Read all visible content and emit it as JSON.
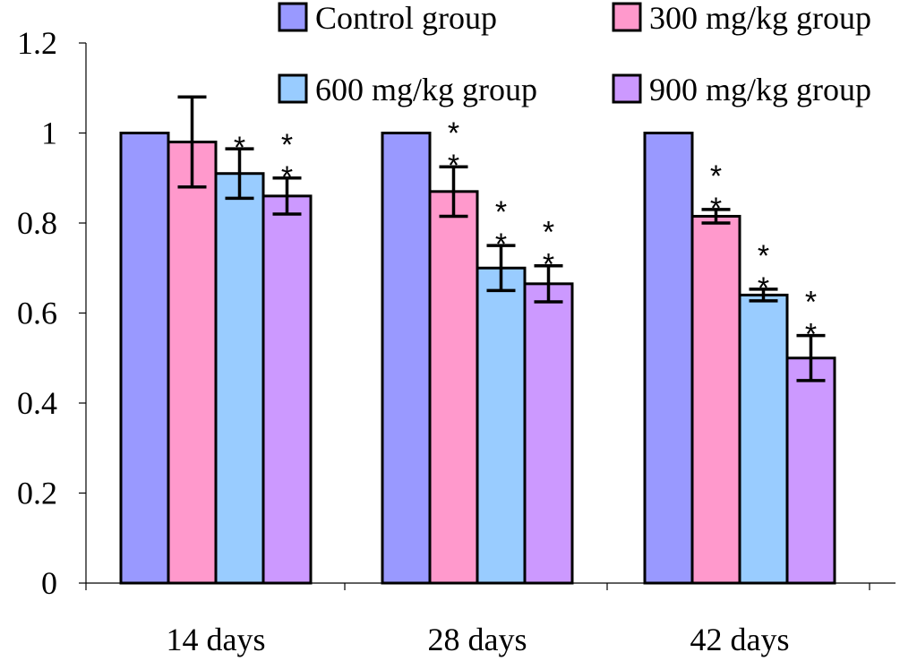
{
  "chart_data": {
    "type": "bar",
    "title": "",
    "xlabel": "",
    "ylabel": "",
    "ylim": [
      0,
      1.2
    ],
    "yticks": [
      "0",
      "0.2",
      "0.4",
      "0.6",
      "0.8",
      "1",
      "1.2"
    ],
    "ytick_values": [
      0,
      0.2,
      0.4,
      0.6,
      0.8,
      1.0,
      1.2
    ],
    "grid": false,
    "legend_position": "top",
    "categories": [
      "14 days",
      "28 days",
      "42 days"
    ],
    "series": [
      {
        "name": "Control group",
        "color": "#9999ff",
        "values": [
          1.0,
          1.0,
          1.0
        ],
        "errors": [
          0,
          0,
          0
        ],
        "significance": [
          "",
          "",
          ""
        ]
      },
      {
        "name": "300 mg/kg group",
        "color": "#ff99cc",
        "values": [
          0.98,
          0.87,
          0.815
        ],
        "errors": [
          0.1,
          0.055,
          0.015
        ],
        "significance": [
          "",
          "**",
          "**"
        ]
      },
      {
        "name": "600 mg/kg group",
        "color": "#99ccff",
        "values": [
          0.91,
          0.7,
          0.64
        ],
        "errors": [
          0.055,
          0.05,
          0.013
        ],
        "significance": [
          "*",
          "**",
          "**"
        ]
      },
      {
        "name": "900 mg/kg group",
        "color": "#cc99ff",
        "values": [
          0.86,
          0.665,
          0.5
        ],
        "errors": [
          0.04,
          0.04,
          0.05
        ],
        "significance": [
          "**",
          "**",
          "**"
        ]
      }
    ]
  }
}
